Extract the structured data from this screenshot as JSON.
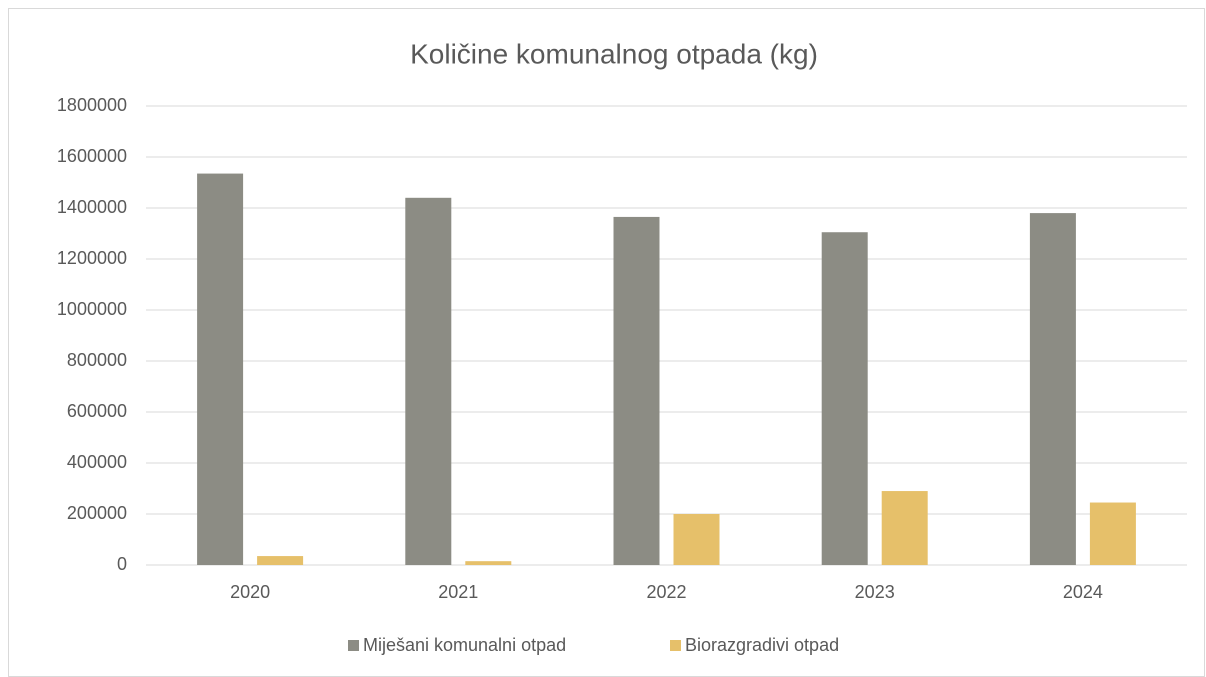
{
  "chart_data": {
    "type": "bar",
    "title": "Količine komunalnog otpada (kg)",
    "categories": [
      "2020",
      "2021",
      "2022",
      "2023",
      "2024"
    ],
    "series": [
      {
        "name": "Miješani komunalni otpad",
        "color": "#8c8c84",
        "values": [
          1535000,
          1440000,
          1365000,
          1305000,
          1380000
        ]
      },
      {
        "name": "Biorazgradivi otpad",
        "color": "#e6c06a",
        "values": [
          35000,
          15000,
          200000,
          290000,
          245000
        ]
      }
    ],
    "ylim": [
      0,
      1800000
    ],
    "yticks": [
      0,
      200000,
      400000,
      600000,
      800000,
      1000000,
      1200000,
      1400000,
      1600000,
      1800000
    ],
    "grid": true,
    "legend": "bottom"
  }
}
